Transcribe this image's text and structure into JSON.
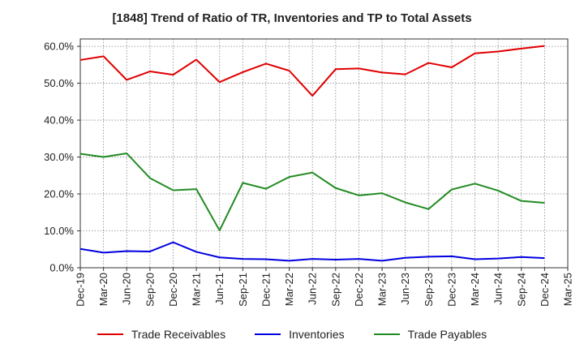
{
  "chart_data": {
    "type": "line",
    "title": "[1848]  Trend of Ratio of TR, Inventories and TP to Total Assets",
    "xlabel": "",
    "ylabel": "",
    "categories": [
      "Dec-19",
      "Mar-20",
      "Jun-20",
      "Sep-20",
      "Dec-20",
      "Mar-21",
      "Jun-21",
      "Sep-21",
      "Dec-21",
      "Mar-22",
      "Jun-22",
      "Sep-22",
      "Dec-22",
      "Mar-23",
      "Jun-23",
      "Sep-23",
      "Dec-23",
      "Mar-24",
      "Jun-24",
      "Sep-24",
      "Dec-24",
      "Mar-25"
    ],
    "tick_labels": [
      "Dec-19",
      "Mar-20",
      "Jun-20",
      "Sep-20",
      "Dec-20",
      "Mar-21",
      "Jun-21",
      "Sep-21",
      "Dec-21",
      "Mar-22",
      "Jun-22",
      "Sep-22",
      "Dec-22",
      "Mar-23",
      "Jun-23",
      "Sep-23",
      "Dec-23",
      "Mar-24",
      "Jun-24",
      "Sep-24",
      "Dec-24",
      "Mar-25"
    ],
    "y_ticks": [
      "0.0%",
      "10.0%",
      "20.0%",
      "30.0%",
      "40.0%",
      "50.0%",
      "60.0%"
    ],
    "ylim": [
      0,
      62
    ],
    "grid": true,
    "legend_position": "bottom",
    "series": [
      {
        "name": "Trade Receivables",
        "color": "#e00000",
        "values": [
          56.3,
          57.3,
          50.9,
          53.2,
          52.3,
          56.4,
          50.3,
          53.0,
          55.3,
          53.4,
          46.6,
          53.8,
          54.0,
          52.9,
          52.4,
          55.5,
          54.3,
          58.1,
          58.6,
          59.4,
          60.1,
          null
        ]
      },
      {
        "name": "Inventories",
        "color": "#0000e0",
        "values": [
          5.1,
          4.1,
          4.5,
          4.4,
          6.9,
          4.3,
          2.8,
          2.4,
          2.3,
          1.9,
          2.4,
          2.2,
          2.4,
          1.9,
          2.7,
          3.0,
          3.1,
          2.3,
          2.5,
          2.9,
          2.6,
          null
        ]
      },
      {
        "name": "Trade Payables",
        "color": "#228b22",
        "values": [
          30.9,
          30.0,
          31.0,
          24.3,
          21.0,
          21.3,
          10.1,
          23.0,
          21.4,
          24.6,
          25.8,
          21.6,
          19.6,
          20.2,
          17.7,
          15.9,
          21.2,
          22.8,
          20.9,
          18.1,
          17.6,
          null
        ]
      }
    ]
  }
}
